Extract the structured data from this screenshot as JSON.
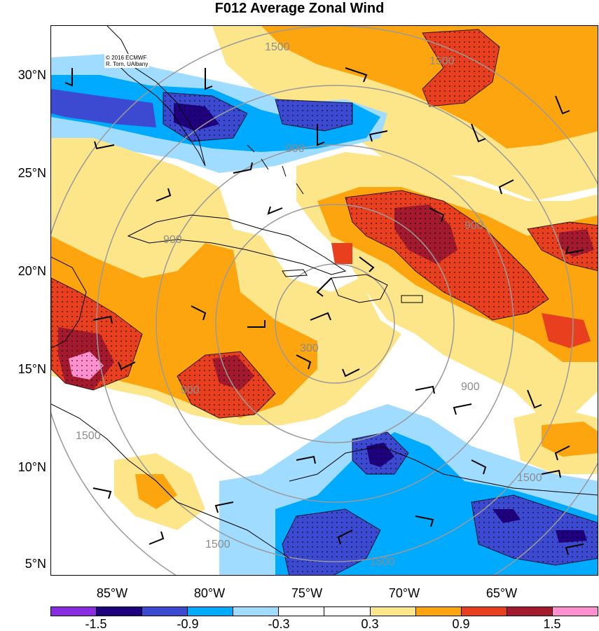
{
  "title": "F012 Average Zonal Wind",
  "copyright": [
    "© 2016 ECMWF",
    "R. Torn, UAlbany"
  ],
  "lat_labels": [
    "30°N",
    "25°N",
    "20°N",
    "15°N",
    "10°N",
    "5°N"
  ],
  "lon_labels": [
    "85°W",
    "80°W",
    "75°W",
    "70°W",
    "65°W"
  ],
  "range_ring_labels": [
    "300",
    "900",
    "1500"
  ],
  "colorbar": {
    "colors": [
      "#8a2be2",
      "#1f007f",
      "#3c4ad1",
      "#00aaff",
      "#9fdcff",
      "#ffffff",
      "#ffffff",
      "#fde68a",
      "#fda50f",
      "#e8401f",
      "#a3192d",
      "#ff8fcf"
    ],
    "tick_labels": [
      "-1.5",
      "-0.9",
      "-0.3",
      "0.3",
      "0.9",
      "1.5"
    ]
  },
  "legend_colors": {
    "strong_negative": "#1f007f",
    "negative": "#3c4ad1",
    "weak_negative": "#00aaff",
    "slight_negative": "#9fdcff",
    "slight_positive": "#fde68a",
    "positive": "#fda50f",
    "strong_positive": "#e8401f",
    "very_strong_positive": "#a3192d",
    "extreme_positive": "#ff8fcf"
  }
}
